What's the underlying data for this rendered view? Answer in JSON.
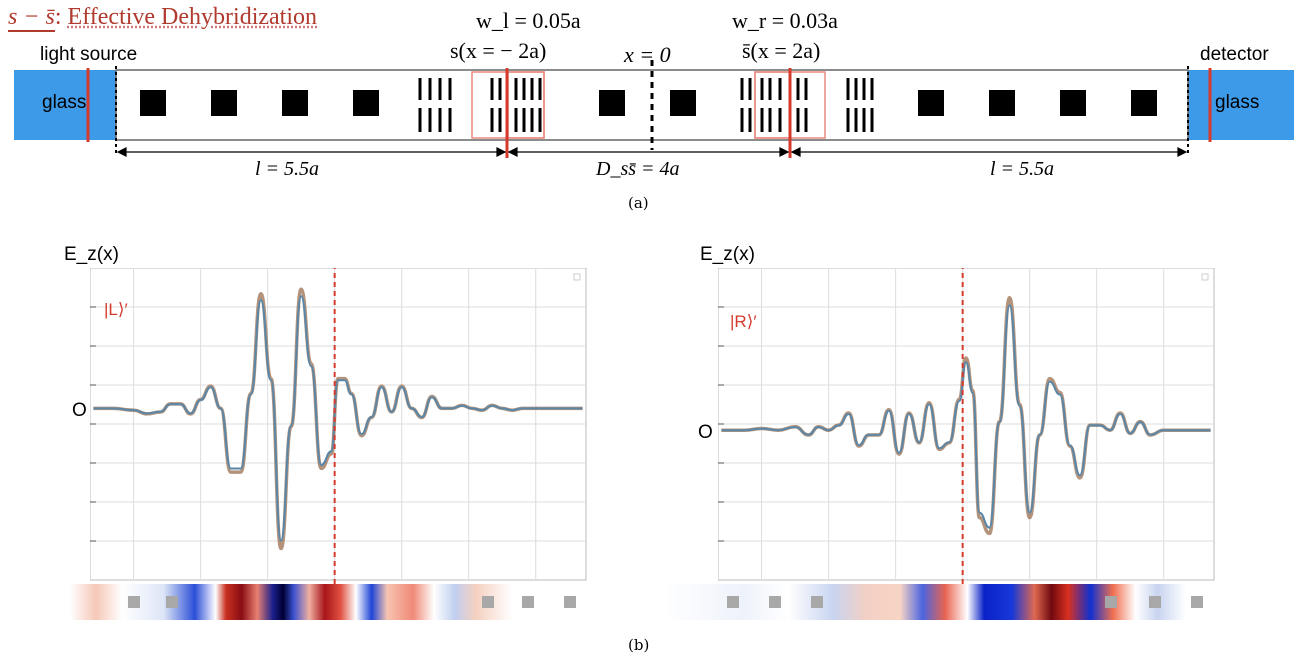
{
  "title": {
    "symbol": "s − s̄",
    "separator": ":",
    "text": "Effective Dehybridization"
  },
  "top_labels": {
    "light_source": "light source",
    "detector": "detector",
    "glass_left": "glass",
    "glass_right": "glass",
    "wl": "w_l = 0.05a",
    "s_left": "s(x = − 2a)",
    "x0": "x = 0",
    "wr": "w_r = 0.03a",
    "s_right": "s̄(x = 2a)"
  },
  "dimensions": {
    "left": "l = 5.5a",
    "middle": "D_ss̄ = 4a",
    "right": "l = 5.5a"
  },
  "captions": {
    "a": "(a)",
    "b": "(b)"
  },
  "colors": {
    "glass": "#3d9ae8",
    "red": "#d63a2c",
    "curve": "#5a86a8",
    "band": "#a0785a"
  },
  "chart_data": [
    {
      "type": "line",
      "ylabel": "E_z(x)",
      "yzero_label": "O",
      "state_label": "|L⟩′",
      "xticks": [
        -6,
        -4,
        -2,
        0,
        2,
        4,
        6
      ],
      "xlim": [
        -7.3,
        7.5
      ],
      "ylim": [
        -1.0,
        1.0
      ],
      "x": [
        -7.2,
        -6.6,
        -6.0,
        -5.6,
        -5.2,
        -4.9,
        -4.6,
        -4.3,
        -4.0,
        -3.7,
        -3.4,
        -3.1,
        -2.8,
        -2.5,
        -2.2,
        -1.9,
        -1.6,
        -1.3,
        -1.0,
        -0.7,
        -0.4,
        -0.1,
        0.1,
        0.3,
        0.5,
        0.8,
        1.1,
        1.4,
        1.7,
        2.0,
        2.3,
        2.6,
        2.9,
        3.2,
        3.5,
        3.8,
        4.1,
        4.4,
        4.7,
        5.0,
        5.3,
        5.6,
        6.0,
        6.5,
        7.0,
        7.4
      ],
      "y": [
        0.0,
        0.0,
        -0.01,
        -0.03,
        -0.02,
        0.03,
        0.03,
        -0.03,
        0.06,
        0.15,
        0.0,
        -0.35,
        -0.35,
        0.1,
        0.77,
        0.2,
        -0.77,
        -0.1,
        0.8,
        0.3,
        -0.33,
        -0.25,
        0.2,
        0.2,
        0.1,
        -0.15,
        -0.05,
        0.15,
        -0.02,
        0.15,
        0.0,
        -0.05,
        0.08,
        0.0,
        0.0,
        0.02,
        0.0,
        -0.01,
        0.02,
        0.0,
        -0.01,
        0.0,
        0.0,
        0.0,
        0.0,
        0.0
      ],
      "marker_x": 0
    },
    {
      "type": "line",
      "ylabel": "E_z(x)",
      "yzero_label": "O",
      "state_label": "|R⟩′",
      "xticks": [
        -6,
        -4,
        -2,
        0,
        2,
        4,
        6
      ],
      "xlim": [
        -7.3,
        7.5
      ],
      "ylim": [
        -1.0,
        1.0
      ],
      "x": [
        -7.2,
        -6.5,
        -6.0,
        -5.5,
        -5.0,
        -4.6,
        -4.3,
        -4.0,
        -3.7,
        -3.4,
        -3.1,
        -2.8,
        -2.5,
        -2.2,
        -1.9,
        -1.6,
        -1.3,
        -1.0,
        -0.7,
        -0.4,
        -0.1,
        0.1,
        0.3,
        0.5,
        0.8,
        1.1,
        1.4,
        1.7,
        2.0,
        2.3,
        2.6,
        2.9,
        3.2,
        3.5,
        3.8,
        4.1,
        4.4,
        4.7,
        5.0,
        5.3,
        5.6,
        6.0,
        6.5,
        7.0,
        7.4
      ],
      "y": [
        0.0,
        0.0,
        0.01,
        0.0,
        0.02,
        -0.03,
        0.02,
        0.0,
        0.03,
        0.1,
        -0.1,
        -0.03,
        -0.03,
        0.12,
        -0.15,
        0.1,
        -0.08,
        0.16,
        -0.12,
        -0.08,
        0.18,
        0.42,
        0.23,
        -0.55,
        -0.65,
        0.05,
        0.77,
        0.15,
        -0.55,
        -0.03,
        0.3,
        0.22,
        -0.1,
        -0.3,
        0.03,
        0.03,
        0.0,
        0.1,
        -0.02,
        0.05,
        -0.03,
        0.0,
        0.0,
        0.0,
        0.0
      ],
      "marker_x": 0
    }
  ]
}
